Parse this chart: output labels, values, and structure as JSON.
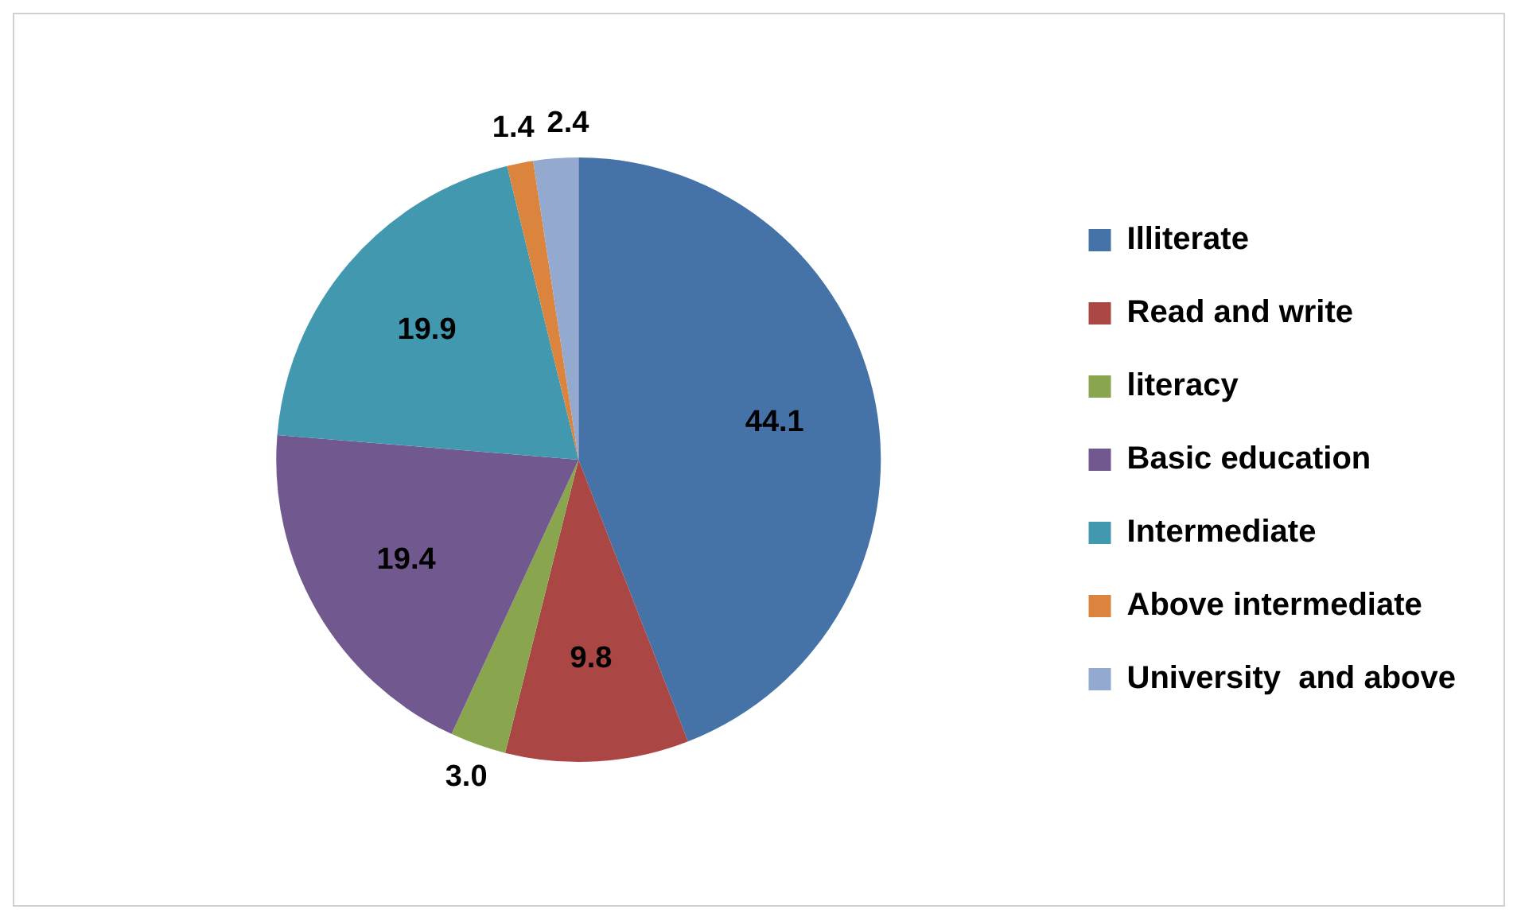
{
  "chart_data": {
    "type": "pie",
    "categories": [
      "Illiterate",
      "Read and write",
      "literacy",
      "Basic education",
      "Intermediate",
      "Above intermediate",
      "University  and above"
    ],
    "values": [
      44.1,
      9.8,
      3.0,
      19.4,
      19.9,
      1.4,
      2.4
    ],
    "colors": [
      "#4572a7",
      "#aa4643",
      "#89a54e",
      "#71588f",
      "#4198af",
      "#db843d",
      "#93a9cf"
    ],
    "value_labels": [
      "44.1",
      "9.8",
      "3.0",
      "19.4",
      "19.9",
      "1.4",
      "2.4"
    ],
    "legend": "right"
  }
}
